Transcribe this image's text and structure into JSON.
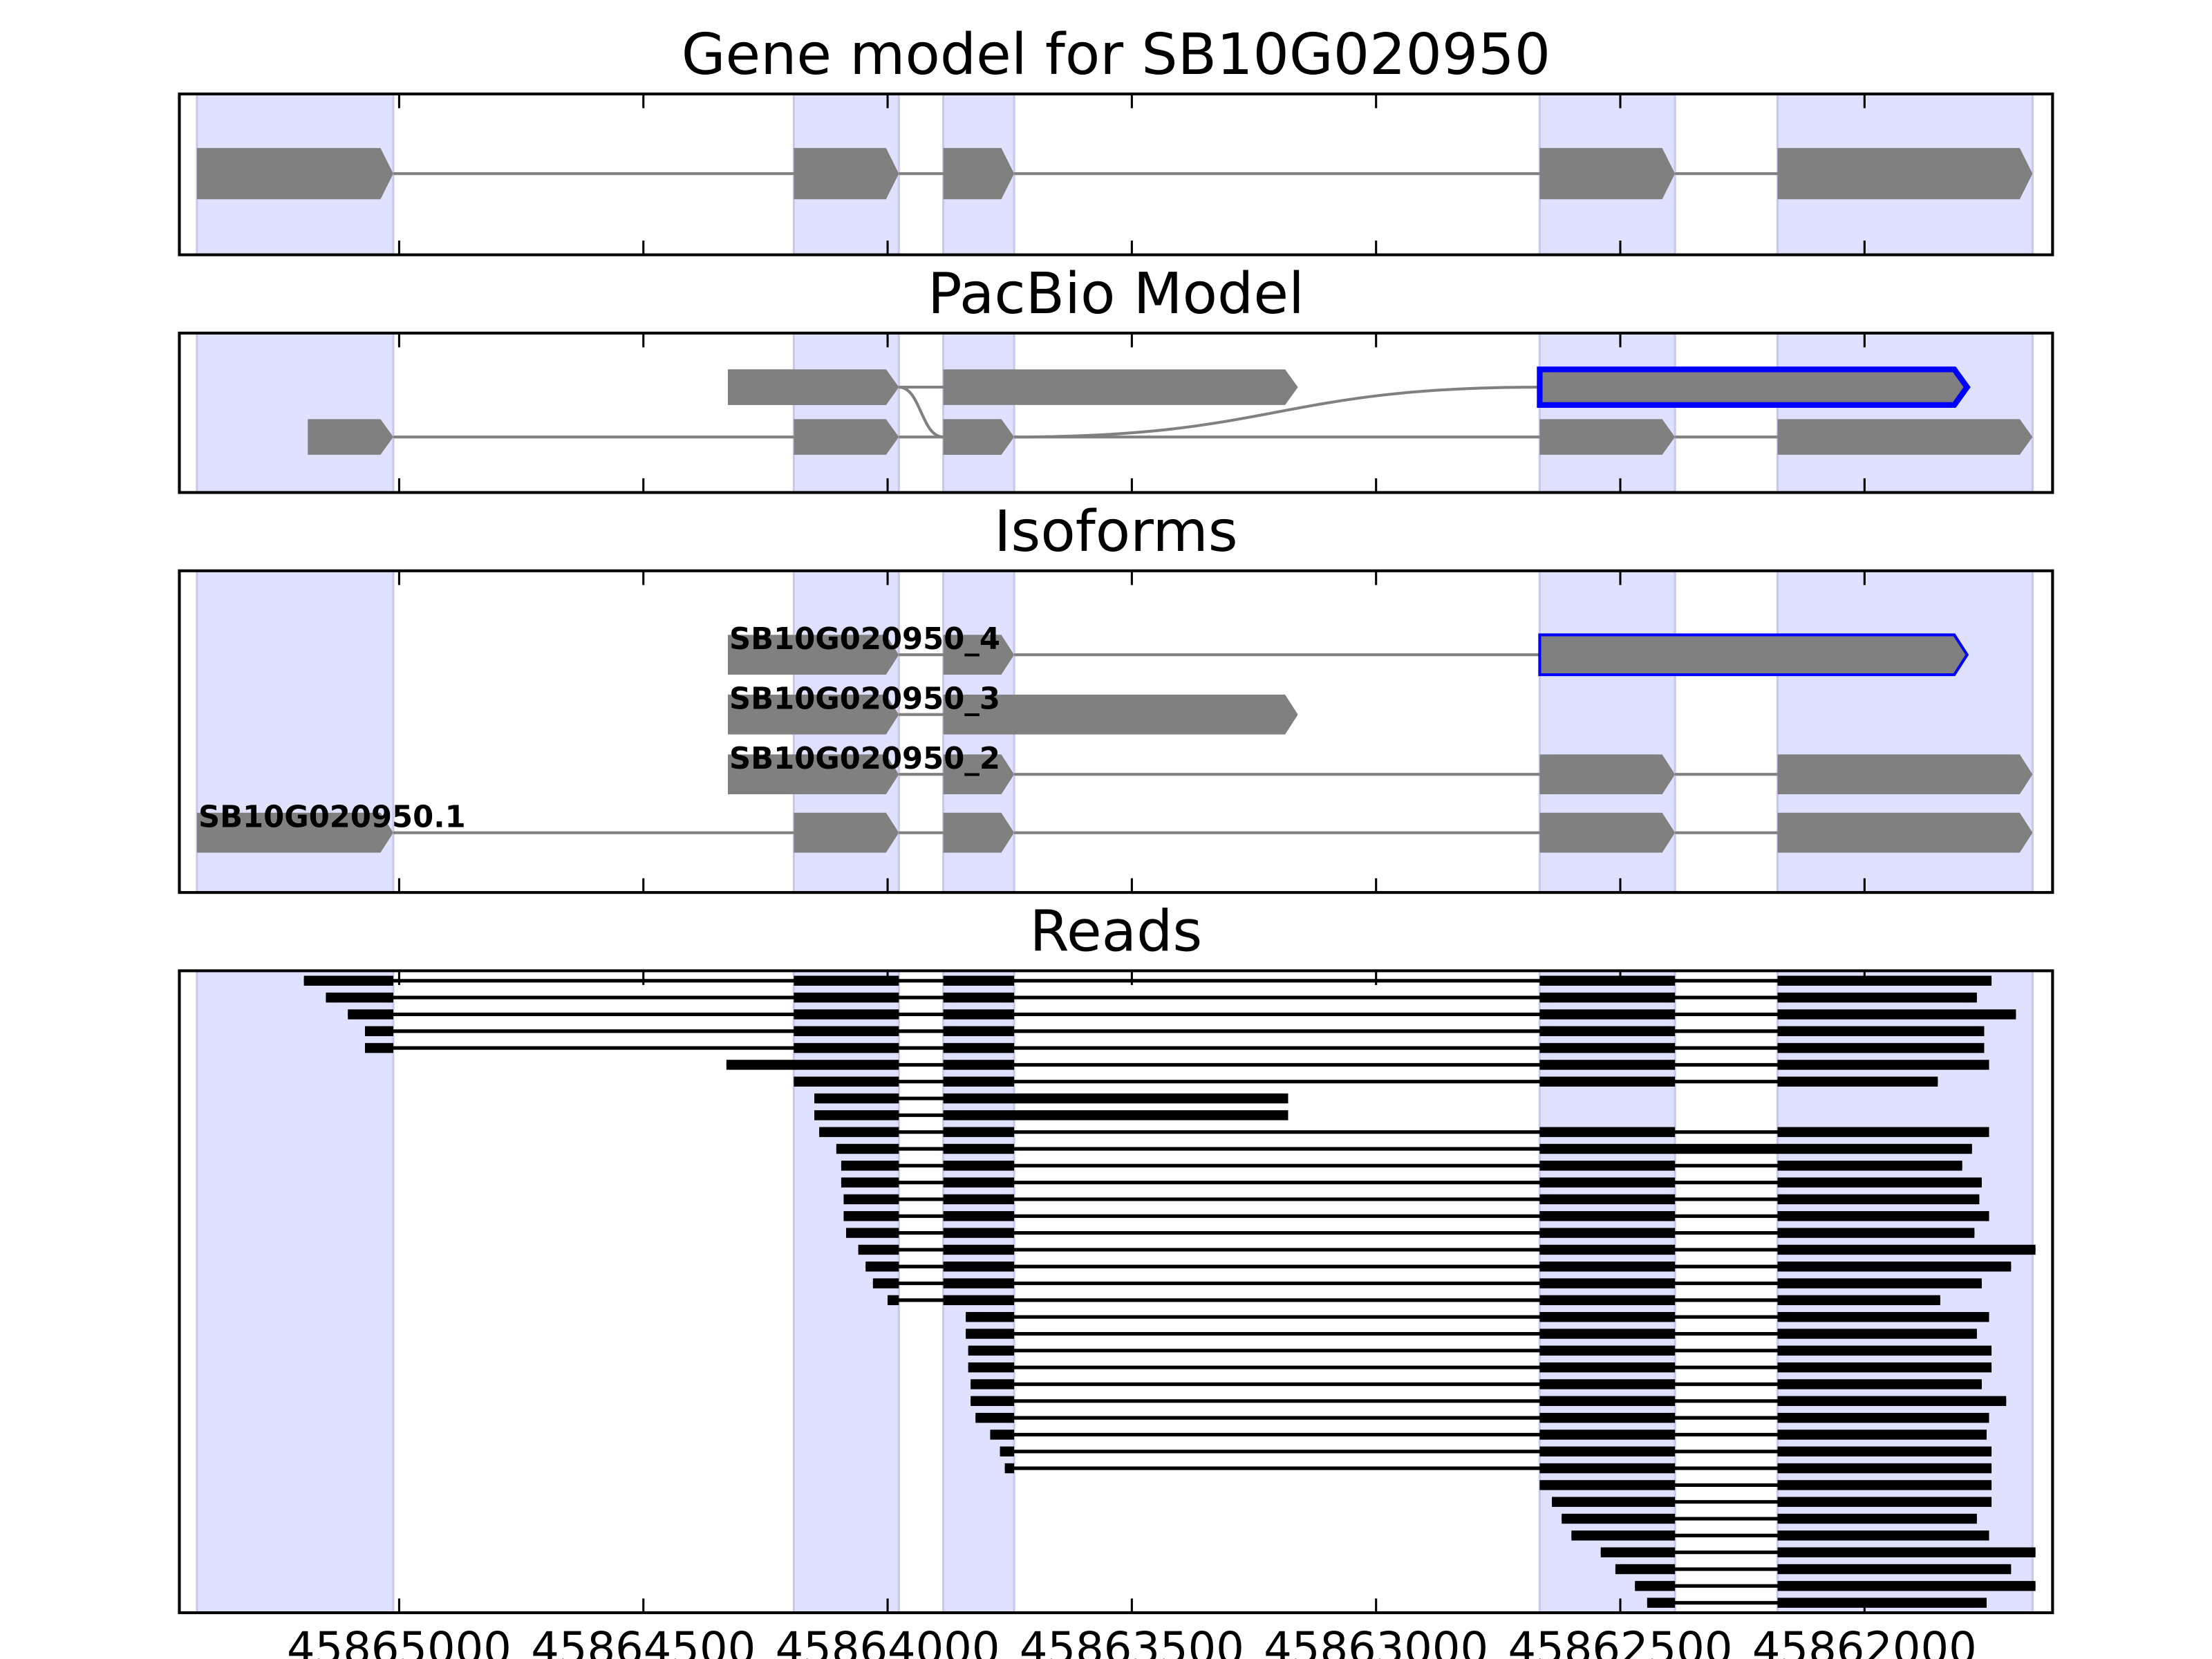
{
  "chart_data": [
    {
      "type": "gene-model",
      "title": "Gene model for SB10G020950",
      "xlim": [
        45865450,
        45861615
      ],
      "xticks": [
        45865000,
        45864500,
        45864000,
        45863500,
        45863000,
        45862500,
        45862000
      ],
      "shade_color": "#e0e0ff",
      "color": "#808080",
      "highlight_color": "#0000ff",
      "exons": [
        [
          45865414,
          45865012
        ],
        [
          45864192,
          45863977
        ],
        [
          45863886,
          45863741
        ],
        [
          45862665,
          45862388
        ],
        [
          45862178,
          45861656
        ]
      ],
      "models": [
        {
          "blocks": [
            [
              45865414,
              45865012,
              0
            ],
            [
              45864192,
              45863977,
              0
            ],
            [
              45863886,
              45863741,
              0
            ],
            [
              45862665,
              45862388,
              0
            ],
            [
              45862178,
              45861656,
              0
            ]
          ]
        }
      ]
    },
    {
      "type": "gene-model",
      "title": "PacBio Model",
      "xlim": [
        45865450,
        45861615
      ],
      "xticks": [
        45865000,
        45864500,
        45864000,
        45863500,
        45863000,
        45862500,
        45862000
      ],
      "shade_color": "#e0e0ff",
      "color": "#808080",
      "highlight_color": "#0000ff",
      "exons": [
        [
          45865414,
          45865012
        ],
        [
          45864192,
          45863977
        ],
        [
          45863886,
          45863741
        ],
        [
          45862665,
          45862388
        ],
        [
          45862178,
          45861656
        ]
      ],
      "models": [
        {
          "blocks": [
            [
              45864327,
              45863977,
              0
            ],
            [
              45863886,
              45863160,
              0
            ]
          ]
        },
        {
          "blocks": [
            [
              45864327,
              45863977,
              0
            ],
            [
              45863886,
              45863741,
              1
            ],
            [
              45862665,
              45861790,
              0
            ]
          ],
          "highlight_block": 2
        },
        {
          "blocks": [
            [
              45865187,
              45865012,
              1
            ],
            [
              45864192,
              45863977,
              1
            ],
            [
              45863886,
              45863741,
              1
            ],
            [
              45862665,
              45862388,
              1
            ],
            [
              45862178,
              45861656,
              1
            ]
          ]
        }
      ]
    },
    {
      "type": "gene-model",
      "title": "Isoforms",
      "xlim": [
        45865450,
        45861615
      ],
      "xticks": [
        45865000,
        45864500,
        45864000,
        45863500,
        45863000,
        45862500,
        45862000
      ],
      "shade_color": "#e0e0ff",
      "color": "#808080",
      "highlight_color": "#0000ff",
      "exons": [
        [
          45865414,
          45865012
        ],
        [
          45864192,
          45863977
        ],
        [
          45863886,
          45863741
        ],
        [
          45862665,
          45862388
        ],
        [
          45862178,
          45861656
        ]
      ],
      "models": [
        {
          "label": "SB10G020950_4",
          "blocks": [
            [
              45864327,
              45863977,
              0
            ],
            [
              45863886,
              45863741,
              0
            ],
            [
              45862665,
              45861790,
              0
            ]
          ],
          "highlight_block": 2
        },
        {
          "label": "SB10G020950_3",
          "blocks": [
            [
              45864327,
              45863977,
              1
            ],
            [
              45863886,
              45863160,
              1
            ]
          ]
        },
        {
          "label": "SB10G020950_2",
          "blocks": [
            [
              45864327,
              45863977,
              2
            ],
            [
              45863886,
              45863741,
              2
            ],
            [
              45862665,
              45862388,
              2
            ],
            [
              45862178,
              45861656,
              2
            ]
          ]
        },
        {
          "label": "SB10G020950.1",
          "blocks": [
            [
              45865414,
              45865012,
              3
            ],
            [
              45864192,
              45863977,
              3
            ],
            [
              45863886,
              45863741,
              3
            ],
            [
              45862665,
              45862388,
              3
            ],
            [
              45862178,
              45861656,
              3
            ]
          ]
        }
      ]
    },
    {
      "type": "reads",
      "title": "Reads",
      "xlim": [
        45865450,
        45861615
      ],
      "xticks": [
        45865000,
        45864500,
        45864000,
        45863500,
        45863000,
        45862500,
        45862000
      ],
      "shade_color": "#e0e0ff",
      "color": "#000000",
      "exons": [
        [
          45865414,
          45865012
        ],
        [
          45864192,
          45863977
        ],
        [
          45863886,
          45863741
        ],
        [
          45862665,
          45862388
        ],
        [
          45862178,
          45861656
        ]
      ],
      "reads": [
        [
          [
            45865195,
            45865012
          ],
          [
            45864192,
            45863977
          ],
          [
            45863886,
            45863741
          ],
          [
            45862665,
            45862388
          ],
          [
            45862178,
            45861740
          ]
        ],
        [
          [
            45865150,
            45865012
          ],
          [
            45864192,
            45863977
          ],
          [
            45863886,
            45863741
          ],
          [
            45862665,
            45862388
          ],
          [
            45862178,
            45861770
          ]
        ],
        [
          [
            45865105,
            45865012
          ],
          [
            45864192,
            45863977
          ],
          [
            45863886,
            45863741
          ],
          [
            45862665,
            45862388
          ],
          [
            45862178,
            45861690
          ]
        ],
        [
          [
            45865070,
            45865012
          ],
          [
            45864192,
            45863977
          ],
          [
            45863886,
            45863741
          ],
          [
            45862665,
            45862388
          ],
          [
            45862178,
            45861755
          ]
        ],
        [
          [
            45865070,
            45865012
          ],
          [
            45864192,
            45863977
          ],
          [
            45863886,
            45863741
          ],
          [
            45862665,
            45862388
          ],
          [
            45862178,
            45861755
          ]
        ],
        [
          [
            45864330,
            45863977
          ],
          [
            45863886,
            45863741
          ],
          [
            45862665,
            45862388
          ],
          [
            45862178,
            45861745
          ]
        ],
        [
          [
            45864192,
            45863977
          ],
          [
            45863886,
            45863741
          ],
          [
            45862665,
            45862388
          ],
          [
            45862178,
            45861850
          ]
        ],
        [
          [
            45864150,
            45863977
          ],
          [
            45863886,
            45863180
          ]
        ],
        [
          [
            45864150,
            45863977
          ],
          [
            45863886,
            45863180
          ]
        ],
        [
          [
            45864140,
            45863977
          ],
          [
            45863886,
            45863741
          ],
          [
            45862665,
            45862388
          ],
          [
            45862178,
            45861745
          ]
        ],
        [
          [
            45864105,
            45863977
          ],
          [
            45863886,
            45863741
          ],
          [
            45862665,
            45861780
          ]
        ],
        [
          [
            45864095,
            45863977
          ],
          [
            45863886,
            45863741
          ],
          [
            45862665,
            45862388
          ],
          [
            45862178,
            45861800
          ]
        ],
        [
          [
            45864095,
            45863977
          ],
          [
            45863886,
            45863741
          ],
          [
            45862665,
            45862388
          ],
          [
            45862178,
            45861760
          ]
        ],
        [
          [
            45864090,
            45863977
          ],
          [
            45863886,
            45863741
          ],
          [
            45862665,
            45862388
          ],
          [
            45862178,
            45861765
          ]
        ],
        [
          [
            45864090,
            45863977
          ],
          [
            45863886,
            45863741
          ],
          [
            45862665,
            45862388
          ],
          [
            45862178,
            45861745
          ]
        ],
        [
          [
            45864085,
            45863977
          ],
          [
            45863886,
            45863741
          ],
          [
            45862665,
            45862388
          ],
          [
            45862178,
            45861775
          ]
        ],
        [
          [
            45864060,
            45863977
          ],
          [
            45863886,
            45863741
          ],
          [
            45862665,
            45862388
          ],
          [
            45862178,
            45861650
          ]
        ],
        [
          [
            45864045,
            45863977
          ],
          [
            45863886,
            45863741
          ],
          [
            45862665,
            45862388
          ],
          [
            45862178,
            45861700
          ]
        ],
        [
          [
            45864030,
            45863977
          ],
          [
            45863886,
            45863741
          ],
          [
            45862665,
            45862388
          ],
          [
            45862178,
            45861760
          ]
        ],
        [
          [
            45864000,
            45863977
          ],
          [
            45863886,
            45863741
          ],
          [
            45862665,
            45862388
          ],
          [
            45862178,
            45861845
          ]
        ],
        [
          [
            45863840,
            45863741
          ],
          [
            45862665,
            45862388
          ],
          [
            45862178,
            45861745
          ]
        ],
        [
          [
            45863840,
            45863741
          ],
          [
            45862665,
            45862388
          ],
          [
            45862178,
            45861770
          ]
        ],
        [
          [
            45863835,
            45863741
          ],
          [
            45862665,
            45862388
          ],
          [
            45862178,
            45861740
          ]
        ],
        [
          [
            45863835,
            45863741
          ],
          [
            45862665,
            45862388
          ],
          [
            45862178,
            45861740
          ]
        ],
        [
          [
            45863830,
            45863741
          ],
          [
            45862665,
            45862388
          ],
          [
            45862178,
            45861760
          ]
        ],
        [
          [
            45863830,
            45863741
          ],
          [
            45862665,
            45862388
          ],
          [
            45862178,
            45861710
          ]
        ],
        [
          [
            45863820,
            45863741
          ],
          [
            45862665,
            45862388
          ],
          [
            45862178,
            45861745
          ]
        ],
        [
          [
            45863790,
            45863741
          ],
          [
            45862665,
            45862388
          ],
          [
            45862178,
            45861750
          ]
        ],
        [
          [
            45863770,
            45863741
          ],
          [
            45862665,
            45862388
          ],
          [
            45862178,
            45861740
          ]
        ],
        [
          [
            45863760,
            45863741
          ],
          [
            45862665,
            45862388
          ],
          [
            45862178,
            45861740
          ]
        ],
        [
          [
            45862665,
            45862388
          ],
          [
            45862178,
            45861740
          ]
        ],
        [
          [
            45862640,
            45862388
          ],
          [
            45862178,
            45861740
          ]
        ],
        [
          [
            45862620,
            45862388
          ],
          [
            45862178,
            45861770
          ]
        ],
        [
          [
            45862600,
            45862388
          ],
          [
            45862178,
            45861745
          ]
        ],
        [
          [
            45862540,
            45862388
          ],
          [
            45862178,
            45861650
          ]
        ],
        [
          [
            45862510,
            45862388
          ],
          [
            45862178,
            45861700
          ]
        ],
        [
          [
            45862470,
            45862388
          ],
          [
            45862178,
            45861650
          ]
        ],
        [
          [
            45862445,
            45862388
          ],
          [
            45862178,
            45861750
          ]
        ]
      ]
    }
  ]
}
